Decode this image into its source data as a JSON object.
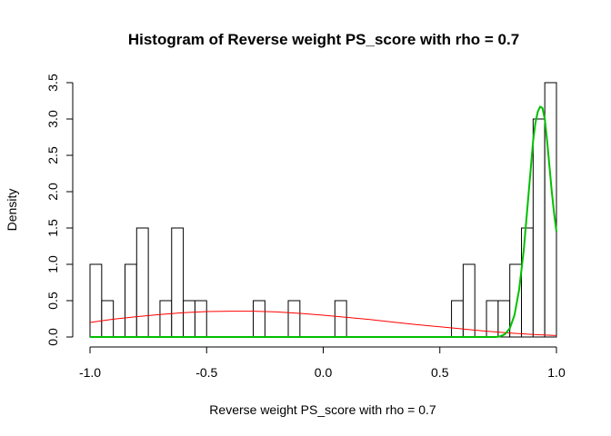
{
  "chart_data": {
    "type": "bar",
    "title": "Histogram of Reverse weight PS_score with rho = 0.7",
    "xlabel": "Reverse weight PS_score with rho = 0.7",
    "ylabel": "Density",
    "xlim": [
      -1.0,
      1.0
    ],
    "ylim": [
      0,
      3.5
    ],
    "x_ticks": [
      "-1.0",
      "-0.5",
      "0.0",
      "0.5",
      "1.0"
    ],
    "y_ticks": [
      "0.0",
      "0.5",
      "1.0",
      "1.5",
      "2.0",
      "2.5",
      "3.0",
      "3.5"
    ],
    "bin_width": 0.05,
    "bins": [
      {
        "x0": -1.0,
        "density": 1.0
      },
      {
        "x0": -0.95,
        "density": 0.5
      },
      {
        "x0": -0.85,
        "density": 1.0
      },
      {
        "x0": -0.8,
        "density": 1.5
      },
      {
        "x0": -0.7,
        "density": 0.5
      },
      {
        "x0": -0.65,
        "density": 1.5
      },
      {
        "x0": -0.6,
        "density": 0.5
      },
      {
        "x0": -0.55,
        "density": 0.5
      },
      {
        "x0": -0.3,
        "density": 0.5
      },
      {
        "x0": -0.15,
        "density": 0.5
      },
      {
        "x0": 0.05,
        "density": 0.5
      },
      {
        "x0": 0.55,
        "density": 0.5
      },
      {
        "x0": 0.6,
        "density": 1.0
      },
      {
        "x0": 0.7,
        "density": 0.5
      },
      {
        "x0": 0.75,
        "density": 0.5
      },
      {
        "x0": 0.8,
        "density": 1.0
      },
      {
        "x0": 0.85,
        "density": 1.5
      },
      {
        "x0": 0.9,
        "density": 3.0
      },
      {
        "x0": 0.95,
        "density": 3.5
      }
    ],
    "series": [
      {
        "color": "#ff0000",
        "type": "line",
        "x": [
          -1.0,
          -0.9,
          -0.8,
          -0.7,
          -0.6,
          -0.5,
          -0.4,
          -0.3,
          -0.2,
          -0.1,
          0.0,
          0.1,
          0.2,
          0.3,
          0.4,
          0.5,
          0.6,
          0.7,
          0.8,
          0.9,
          1.0
        ],
        "values": [
          0.2,
          0.245,
          0.28,
          0.31,
          0.335,
          0.35,
          0.355,
          0.355,
          0.345,
          0.325,
          0.3,
          0.27,
          0.24,
          0.205,
          0.17,
          0.14,
          0.11,
          0.08,
          0.055,
          0.035,
          0.02
        ]
      },
      {
        "color": "#00c000",
        "type": "line",
        "x": [
          -1.0,
          0.74,
          0.76,
          0.78,
          0.8,
          0.82,
          0.84,
          0.86,
          0.88,
          0.9,
          0.91,
          0.92,
          0.93,
          0.94,
          0.95,
          0.96,
          0.97,
          0.98,
          0.99,
          1.0
        ],
        "values": [
          0.0,
          0.0,
          0.01,
          0.04,
          0.12,
          0.3,
          0.65,
          1.2,
          1.95,
          2.7,
          2.95,
          3.1,
          3.17,
          3.15,
          3.0,
          2.7,
          2.35,
          2.0,
          1.7,
          1.45
        ]
      }
    ]
  }
}
